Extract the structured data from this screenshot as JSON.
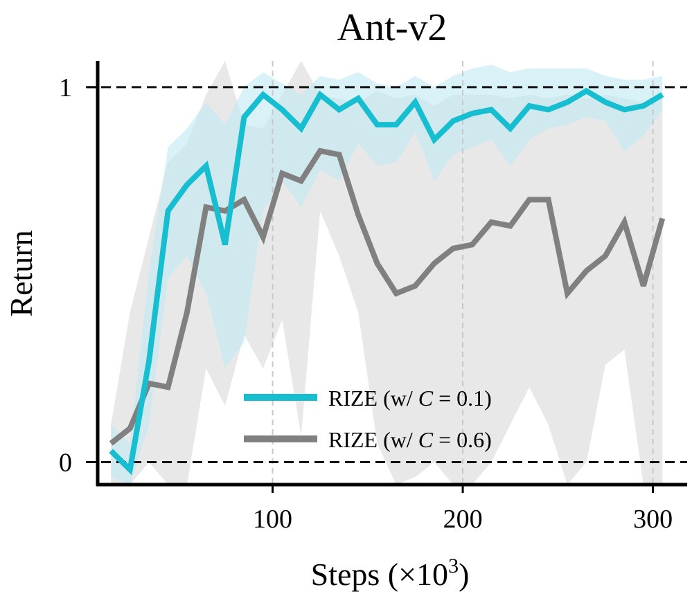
{
  "chart_data": {
    "type": "line",
    "title": "Ant-v2",
    "xlabel_main": "Steps (×10",
    "xlabel_sup": "3",
    "xlabel_close": ")",
    "ylabel": "Return",
    "xlim": [
      8,
      318
    ],
    "ylim": [
      -0.06,
      1.07
    ],
    "x_ticks": [
      100,
      200,
      300
    ],
    "x_tick_labels": [
      "100",
      "200",
      "300"
    ],
    "y_ticks": [
      0,
      1
    ],
    "y_tick_labels": [
      "0",
      "1"
    ],
    "reference_lines": [
      0,
      1
    ],
    "x_grid": true,
    "legend_position": "lower-center",
    "colors": {
      "c01": "#17becf",
      "c01_band": "#bfe9f2",
      "c06": "#808080",
      "c06_band": "#d6d6d6"
    },
    "series": [
      {
        "name": "RIZE (w/ C = 0.1)",
        "legend_prefix": "RIZE (w/ ",
        "legend_var": "C",
        "legend_suffix": " = 0.1)",
        "x": [
          15,
          25,
          35,
          45,
          55,
          65,
          75,
          85,
          95,
          105,
          115,
          125,
          135,
          145,
          155,
          165,
          175,
          185,
          195,
          205,
          215,
          225,
          235,
          245,
          255,
          265,
          275,
          285,
          295,
          305
        ],
        "y": [
          0.03,
          -0.02,
          0.27,
          0.67,
          0.74,
          0.79,
          0.58,
          0.92,
          0.98,
          0.94,
          0.89,
          0.98,
          0.94,
          0.97,
          0.9,
          0.9,
          0.96,
          0.86,
          0.91,
          0.93,
          0.94,
          0.89,
          0.95,
          0.94,
          0.96,
          0.99,
          0.96,
          0.94,
          0.95,
          0.98
        ],
        "lower": [
          -0.04,
          -0.06,
          0.1,
          0.49,
          0.55,
          0.45,
          0.25,
          0.32,
          0.67,
          0.75,
          0.68,
          0.78,
          0.75,
          0.85,
          0.79,
          0.8,
          0.88,
          0.75,
          0.82,
          0.84,
          0.86,
          0.79,
          0.86,
          0.89,
          0.9,
          0.92,
          0.91,
          0.83,
          0.87,
          0.94
        ],
        "upper": [
          0.1,
          0.05,
          0.51,
          0.84,
          0.89,
          0.96,
          0.9,
          1.0,
          1.04,
          1.01,
          0.98,
          1.03,
          1.02,
          1.04,
          1.01,
          1.0,
          1.03,
          1.0,
          1.03,
          1.05,
          1.06,
          1.04,
          1.05,
          1.05,
          1.05,
          1.05,
          1.03,
          1.02,
          1.02,
          1.03
        ]
      },
      {
        "name": "RIZE (w/ C = 0.6)",
        "legend_prefix": "RIZE (w/ ",
        "legend_var": "C",
        "legend_suffix": " = 0.6)",
        "x": [
          15,
          25,
          35,
          45,
          55,
          65,
          75,
          85,
          95,
          105,
          115,
          125,
          135,
          145,
          155,
          165,
          175,
          185,
          195,
          205,
          215,
          225,
          235,
          245,
          255,
          265,
          275,
          285,
          295,
          305
        ],
        "y": [
          0.05,
          0.09,
          0.21,
          0.2,
          0.4,
          0.68,
          0.67,
          0.7,
          0.6,
          0.77,
          0.75,
          0.83,
          0.82,
          0.66,
          0.53,
          0.45,
          0.47,
          0.53,
          0.57,
          0.58,
          0.64,
          0.63,
          0.7,
          0.7,
          0.45,
          0.51,
          0.55,
          0.64,
          0.47,
          0.65
        ],
        "lower": [
          -0.06,
          -0.06,
          0.0,
          -0.06,
          -0.06,
          0.25,
          0.15,
          0.34,
          0.25,
          0.38,
          0.07,
          0.67,
          0.55,
          0.4,
          0.05,
          -0.06,
          -0.04,
          0.0,
          -0.06,
          -0.06,
          0.0,
          0.1,
          0.2,
          0.1,
          -0.06,
          0.0,
          0.26,
          0.3,
          -0.06,
          -0.06
        ],
        "upper": [
          0.1,
          0.4,
          0.6,
          0.8,
          0.85,
          0.98,
          1.07,
          0.9,
          0.89,
          0.98,
          1.07,
          0.98,
          0.97,
          0.96,
          0.99,
          0.97,
          0.98,
          0.95,
          0.98,
          0.98,
          0.98,
          0.97,
          0.98,
          0.97,
          0.98,
          0.97,
          0.98,
          0.97,
          0.96,
          0.98
        ]
      }
    ]
  }
}
